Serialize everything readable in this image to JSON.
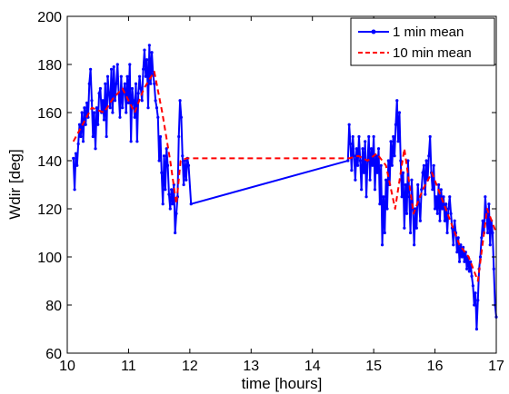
{
  "chart_data": {
    "type": "line",
    "title": "",
    "xlabel": "time [hours]",
    "ylabel": "Wdir [deg]",
    "xlim": [
      10,
      17
    ],
    "ylim": [
      60,
      200
    ],
    "xticks": [
      "10",
      "11",
      "12",
      "13",
      "14",
      "15",
      "16",
      "17"
    ],
    "yticks": [
      "60",
      "80",
      "100",
      "120",
      "140",
      "160",
      "180",
      "200"
    ],
    "grid": false,
    "legend_position": "top-right",
    "series": [
      {
        "name": "1 min mean",
        "color": "#0000ff",
        "style": "solid-with-dots",
        "points": [
          [
            10.1,
            141
          ],
          [
            10.12,
            128
          ],
          [
            10.14,
            143
          ],
          [
            10.16,
            138
          ],
          [
            10.18,
            147
          ],
          [
            10.2,
            155
          ],
          [
            10.22,
            150
          ],
          [
            10.24,
            160
          ],
          [
            10.26,
            148
          ],
          [
            10.28,
            162
          ],
          [
            10.3,
            155
          ],
          [
            10.32,
            164
          ],
          [
            10.34,
            158
          ],
          [
            10.36,
            172
          ],
          [
            10.38,
            178
          ],
          [
            10.4,
            165
          ],
          [
            10.42,
            150
          ],
          [
            10.44,
            160
          ],
          [
            10.46,
            145
          ],
          [
            10.48,
            162
          ],
          [
            10.5,
            155
          ],
          [
            10.52,
            168
          ],
          [
            10.54,
            170
          ],
          [
            10.56,
            160
          ],
          [
            10.58,
            165
          ],
          [
            10.6,
            157
          ],
          [
            10.62,
            172
          ],
          [
            10.64,
            150
          ],
          [
            10.66,
            175
          ],
          [
            10.68,
            168
          ],
          [
            10.7,
            162
          ],
          [
            10.72,
            178
          ],
          [
            10.74,
            160
          ],
          [
            10.76,
            179
          ],
          [
            10.78,
            165
          ],
          [
            10.8,
            172
          ],
          [
            10.82,
            180
          ],
          [
            10.84,
            168
          ],
          [
            10.86,
            158
          ],
          [
            10.88,
            175
          ],
          [
            10.9,
            162
          ],
          [
            10.92,
            169
          ],
          [
            10.94,
            172
          ],
          [
            10.96,
            160
          ],
          [
            10.98,
            175
          ],
          [
            11.0,
            164
          ],
          [
            11.02,
            180
          ],
          [
            11.04,
            148
          ],
          [
            11.06,
            170
          ],
          [
            11.08,
            165
          ],
          [
            11.1,
            158
          ],
          [
            11.12,
            172
          ],
          [
            11.14,
            148
          ],
          [
            11.16,
            168
          ],
          [
            11.18,
            175
          ],
          [
            11.2,
            170
          ],
          [
            11.22,
            165
          ],
          [
            11.24,
            178
          ],
          [
            11.26,
            186
          ],
          [
            11.28,
            175
          ],
          [
            11.3,
            182
          ],
          [
            11.32,
            162
          ],
          [
            11.34,
            188
          ],
          [
            11.36,
            172
          ],
          [
            11.38,
            185
          ],
          [
            11.4,
            176
          ],
          [
            11.42,
            172
          ],
          [
            11.44,
            165
          ],
          [
            11.46,
            162
          ],
          [
            11.48,
            158
          ],
          [
            11.5,
            140
          ],
          [
            11.52,
            150
          ],
          [
            11.54,
            135
          ],
          [
            11.56,
            122
          ],
          [
            11.58,
            142
          ],
          [
            11.6,
            128
          ],
          [
            11.62,
            145
          ],
          [
            11.64,
            138
          ],
          [
            11.66,
            126
          ],
          [
            11.68,
            120
          ],
          [
            11.7,
            128
          ],
          [
            11.72,
            122
          ],
          [
            11.74,
            130
          ],
          [
            11.76,
            110
          ],
          [
            11.78,
            118
          ],
          [
            11.8,
            125
          ],
          [
            11.82,
            150
          ],
          [
            11.84,
            165
          ],
          [
            11.86,
            158
          ],
          [
            11.88,
            142
          ],
          [
            11.9,
            130
          ],
          [
            11.92,
            140
          ],
          [
            11.94,
            132
          ],
          [
            11.96,
            141
          ],
          [
            11.98,
            138
          ],
          [
            12.02,
            122
          ],
          [
            14.58,
            140
          ],
          [
            14.6,
            155
          ],
          [
            14.62,
            147
          ],
          [
            14.64,
            136
          ],
          [
            14.66,
            150
          ],
          [
            14.68,
            142
          ],
          [
            14.7,
            132
          ],
          [
            14.72,
            145
          ],
          [
            14.74,
            138
          ],
          [
            14.76,
            150
          ],
          [
            14.78,
            140
          ],
          [
            14.8,
            128
          ],
          [
            14.82,
            145
          ],
          [
            14.84,
            135
          ],
          [
            14.86,
            148
          ],
          [
            14.88,
            125
          ],
          [
            14.9,
            140
          ],
          [
            14.92,
            150
          ],
          [
            14.94,
            132
          ],
          [
            14.96,
            145
          ],
          [
            14.98,
            138
          ],
          [
            15.0,
            150
          ],
          [
            15.02,
            128
          ],
          [
            15.04,
            142
          ],
          [
            15.06,
            135
          ],
          [
            15.08,
            145
          ],
          [
            15.1,
            122
          ],
          [
            15.12,
            138
          ],
          [
            15.14,
            105
          ],
          [
            15.16,
            125
          ],
          [
            15.18,
            110
          ],
          [
            15.2,
            132
          ],
          [
            15.22,
            120
          ],
          [
            15.24,
            140
          ],
          [
            15.26,
            130
          ],
          [
            15.28,
            148
          ],
          [
            15.3,
            138
          ],
          [
            15.32,
            150
          ],
          [
            15.34,
            142
          ],
          [
            15.36,
            155
          ],
          [
            15.38,
            165
          ],
          [
            15.4,
            148
          ],
          [
            15.42,
            160
          ],
          [
            15.44,
            140
          ],
          [
            15.46,
            125
          ],
          [
            15.48,
            135
          ],
          [
            15.5,
            112
          ],
          [
            15.52,
            130
          ],
          [
            15.54,
            118
          ],
          [
            15.56,
            140
          ],
          [
            15.58,
            125
          ],
          [
            15.6,
            110
          ],
          [
            15.62,
            132
          ],
          [
            15.64,
            120
          ],
          [
            15.66,
            105
          ],
          [
            15.68,
            120
          ],
          [
            15.7,
            112
          ],
          [
            15.72,
            130
          ],
          [
            15.74,
            122
          ],
          [
            15.76,
            115
          ],
          [
            15.78,
            128
          ],
          [
            15.8,
            135
          ],
          [
            15.82,
            138
          ],
          [
            15.84,
            126
          ],
          [
            15.86,
            140
          ],
          [
            15.88,
            132
          ],
          [
            15.9,
            142
          ],
          [
            15.92,
            150
          ],
          [
            15.94,
            135
          ],
          [
            15.96,
            128
          ],
          [
            15.98,
            138
          ],
          [
            16.0,
            120
          ],
          [
            16.02,
            125
          ],
          [
            16.04,
            118
          ],
          [
            16.06,
            130
          ],
          [
            16.08,
            115
          ],
          [
            16.1,
            128
          ],
          [
            16.12,
            120
          ],
          [
            16.14,
            125
          ],
          [
            16.16,
            115
          ],
          [
            16.18,
            122
          ],
          [
            16.2,
            110
          ],
          [
            16.22,
            120
          ],
          [
            16.24,
            125
          ],
          [
            16.26,
            118
          ],
          [
            16.28,
            112
          ],
          [
            16.3,
            105
          ],
          [
            16.32,
            115
          ],
          [
            16.34,
            110
          ],
          [
            16.36,
            102
          ],
          [
            16.38,
            108
          ],
          [
            16.4,
            98
          ],
          [
            16.42,
            105
          ],
          [
            16.44,
            100
          ],
          [
            16.46,
            104
          ],
          [
            16.48,
            98
          ],
          [
            16.5,
            102
          ],
          [
            16.52,
            95
          ],
          [
            16.54,
            100
          ],
          [
            16.56,
            94
          ],
          [
            16.58,
            98
          ],
          [
            16.6,
            92
          ],
          [
            16.62,
            88
          ],
          [
            16.64,
            80
          ],
          [
            16.66,
            85
          ],
          [
            16.68,
            70
          ],
          [
            16.7,
            82
          ],
          [
            16.72,
            95
          ],
          [
            16.74,
            100
          ],
          [
            16.76,
            108
          ],
          [
            16.78,
            115
          ],
          [
            16.8,
            110
          ],
          [
            16.82,
            125
          ],
          [
            16.84,
            118
          ],
          [
            16.86,
            110
          ],
          [
            16.88,
            122
          ],
          [
            16.9,
            105
          ],
          [
            16.92,
            115
          ],
          [
            16.94,
            110
          ],
          [
            16.96,
            95
          ],
          [
            16.98,
            80
          ],
          [
            17.0,
            75
          ]
        ]
      },
      {
        "name": "10 min mean",
        "color": "#ff0000",
        "style": "dashed",
        "points": [
          [
            10.1,
            148
          ],
          [
            10.25,
            155
          ],
          [
            10.4,
            162
          ],
          [
            10.6,
            160
          ],
          [
            10.75,
            166
          ],
          [
            10.9,
            170
          ],
          [
            11.1,
            160
          ],
          [
            11.25,
            170
          ],
          [
            11.42,
            177
          ],
          [
            11.55,
            160
          ],
          [
            11.68,
            140
          ],
          [
            11.78,
            122
          ],
          [
            11.85,
            140
          ],
          [
            11.95,
            141
          ],
          [
            14.6,
            141
          ],
          [
            14.75,
            142
          ],
          [
            14.9,
            140
          ],
          [
            15.05,
            143
          ],
          [
            15.2,
            138
          ],
          [
            15.35,
            120
          ],
          [
            15.5,
            145
          ],
          [
            15.65,
            118
          ],
          [
            15.8,
            128
          ],
          [
            15.95,
            135
          ],
          [
            16.1,
            125
          ],
          [
            16.25,
            115
          ],
          [
            16.4,
            105
          ],
          [
            16.55,
            100
          ],
          [
            16.7,
            90
          ],
          [
            16.85,
            120
          ],
          [
            17.0,
            110
          ]
        ]
      }
    ]
  }
}
